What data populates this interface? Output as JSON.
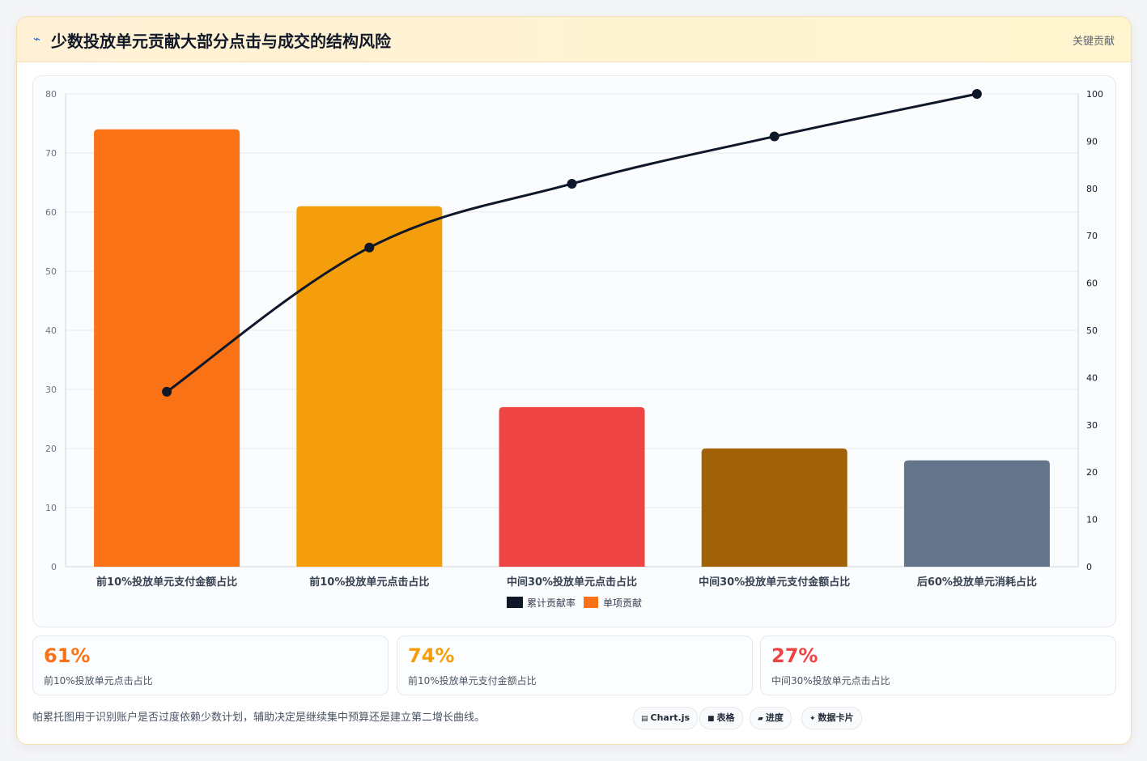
{
  "header": {
    "icon": "lightning-icon",
    "title": "少数投放单元贡献大部分点击与成交的结构风险",
    "badge": "关键贡献"
  },
  "chart_data": {
    "type": "bar",
    "categories": [
      "前10%投放单元支付金额占比",
      "前10%投放单元点击占比",
      "中间30%投放单元点击占比",
      "中间30%投放单元支付金额占比",
      "后60%投放单元消耗占比"
    ],
    "series": [
      {
        "name": "单项贡献",
        "type": "bar",
        "axis": "left",
        "values": [
          74,
          61,
          27,
          20,
          18
        ]
      },
      {
        "name": "累计贡献率",
        "type": "line",
        "axis": "right",
        "values": [
          37,
          67.5,
          81,
          91,
          100
        ]
      }
    ],
    "bar_colors": [
      "#f97316",
      "#f59e0b",
      "#ef4444",
      "#a16207",
      "#64748b"
    ],
    "line_color": "#0f172a",
    "ylim": [
      0,
      80
    ],
    "yticks": [
      0,
      10,
      20,
      30,
      40,
      50,
      60,
      70,
      80
    ],
    "y2lim": [
      0,
      100
    ],
    "y2ticks": [
      0,
      10,
      20,
      30,
      40,
      50,
      60,
      70,
      80,
      90,
      100
    ],
    "legend_position": "bottom",
    "grid": true
  },
  "stats": [
    {
      "value": "61%",
      "label": "前10%投放单元点击占比",
      "color": "#f97316"
    },
    {
      "value": "74%",
      "label": "前10%投放单元支付金额占比",
      "color": "#f59e0b"
    },
    {
      "value": "27%",
      "label": "中间30%投放单元点击占比",
      "color": "#ef4444"
    }
  ],
  "note": "帕累托图用于识别账户是否过度依赖少数计划，辅助决定是继续集中预算还是建立第二增长曲线。",
  "tags": [
    {
      "icon": "chart-icon",
      "glyph": "▤",
      "label": "Chart.js"
    },
    {
      "icon": "table-icon",
      "glyph": "■",
      "label": "表格"
    },
    {
      "icon": "progress-icon",
      "glyph": "▰",
      "label": "进度"
    },
    {
      "icon": "sparkle-icon",
      "glyph": "✦",
      "label": "数据卡片"
    }
  ]
}
